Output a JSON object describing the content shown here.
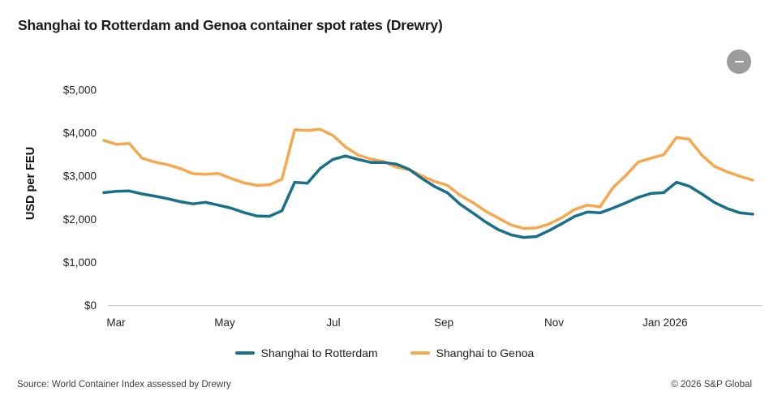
{
  "page": {
    "title": "Shanghai to Rotterdam and Genoa container spot rates (Drewry)"
  },
  "controls": {
    "collapse_button_icon": "minus"
  },
  "footer": {
    "source": "Source: World Container Index assessed by Drewry",
    "copyright": "© 2026 S&P Global"
  },
  "chart_data": {
    "type": "line",
    "title": "Shanghai to Rotterdam and Genoa container spot rates (Drewry)",
    "xlabel": "",
    "ylabel": "USD per FEU",
    "ylim": [
      0,
      5000
    ],
    "y_tick_values": [
      0,
      1000,
      2000,
      3000,
      4000,
      5000
    ],
    "y_tick_labels": [
      "$0",
      "$1,000",
      "$2,000",
      "$3,000",
      "$4,000",
      "$5,000"
    ],
    "x_tick_labels": [
      "Mar",
      "May",
      "Jul",
      "Sep",
      "Nov",
      "Jan 2026"
    ],
    "x_tick_week_positions": [
      0.96,
      9.5,
      18.04,
      26.71,
      35.38,
      44.11
    ],
    "grid": false,
    "legend_position": "bottom",
    "axis_line_color": "#c9c9c9",
    "series": [
      {
        "name": "Shanghai to Rotterdam",
        "color": "#1a6f8b",
        "values": [
          2620,
          2650,
          2660,
          2590,
          2540,
          2480,
          2410,
          2360,
          2395,
          2330,
          2260,
          2160,
          2080,
          2070,
          2200,
          2860,
          2840,
          3180,
          3390,
          3470,
          3390,
          3320,
          3320,
          3280,
          3160,
          2950,
          2760,
          2620,
          2350,
          2150,
          1940,
          1760,
          1640,
          1580,
          1600,
          1740,
          1900,
          2070,
          2170,
          2150,
          2260,
          2380,
          2510,
          2600,
          2620,
          2860,
          2770,
          2590,
          2390,
          2250,
          2150,
          2120
        ]
      },
      {
        "name": "Shanghai to Genoa",
        "color": "#f6a84f",
        "values": [
          3830,
          3740,
          3760,
          3420,
          3330,
          3270,
          3180,
          3060,
          3045,
          3065,
          2950,
          2850,
          2790,
          2800,
          2930,
          4080,
          4060,
          4090,
          3950,
          3680,
          3490,
          3400,
          3340,
          3210,
          3150,
          3010,
          2880,
          2790,
          2560,
          2390,
          2190,
          2030,
          1870,
          1790,
          1800,
          1890,
          2040,
          2230,
          2330,
          2290,
          2730,
          3010,
          3330,
          3420,
          3500,
          3900,
          3860,
          3490,
          3230,
          3100,
          3000,
          2910
        ]
      }
    ]
  }
}
